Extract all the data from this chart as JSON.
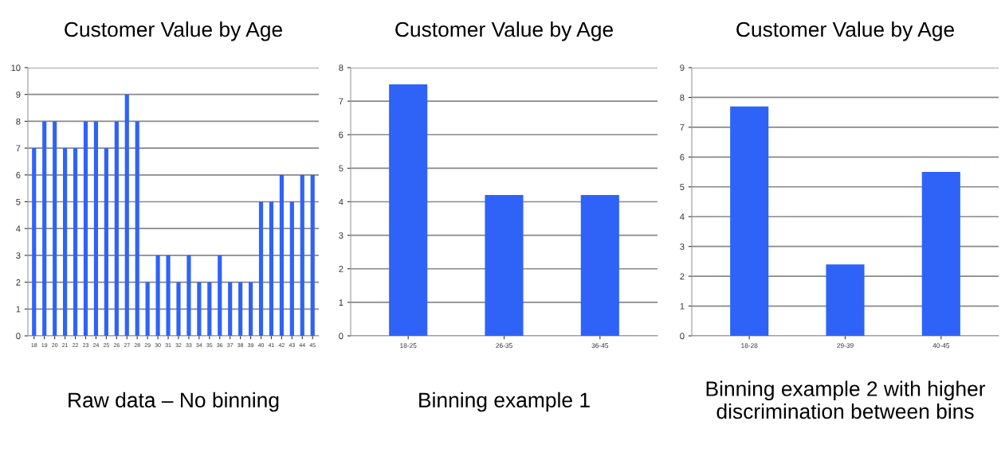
{
  "chart_data": [
    {
      "type": "bar",
      "title": "Customer Value by Age",
      "categories": [
        "18",
        "19",
        "20",
        "21",
        "22",
        "23",
        "24",
        "25",
        "26",
        "27",
        "28",
        "29",
        "30",
        "31",
        "32",
        "33",
        "34",
        "35",
        "36",
        "37",
        "38",
        "39",
        "40",
        "41",
        "42",
        "43",
        "44",
        "45"
      ],
      "values": [
        7,
        8,
        8,
        7,
        7,
        8,
        8,
        7,
        8,
        9,
        8,
        2,
        3,
        3,
        2,
        3,
        2,
        2,
        3,
        2,
        2,
        2,
        5,
        5,
        6,
        5,
        6,
        6
      ],
      "color": "#2f63f7",
      "ylim": [
        0,
        10
      ],
      "yticks": [
        0,
        1,
        2,
        3,
        4,
        5,
        6,
        7,
        8,
        9,
        10
      ],
      "grid": "y",
      "annotations": [
        "Raw data – No binning"
      ]
    },
    {
      "type": "bar",
      "title": "Customer Value by Age",
      "categories": [
        "18-25",
        "26-35",
        "36-45"
      ],
      "values": [
        7.5,
        4.2,
        4.2
      ],
      "color": "#2f63f7",
      "ylim": [
        0,
        8
      ],
      "yticks": [
        0,
        1,
        2,
        3,
        4,
        5,
        6,
        7,
        8
      ],
      "grid": "y",
      "annotations": [
        "Binning example 1"
      ]
    },
    {
      "type": "bar",
      "title": "Customer Value by Age",
      "categories": [
        "18-28",
        "29-39",
        "40-45"
      ],
      "values": [
        7.7,
        2.4,
        5.5
      ],
      "color": "#2f63f7",
      "ylim": [
        0,
        9
      ],
      "yticks": [
        0,
        1,
        2,
        3,
        4,
        5,
        6,
        7,
        8,
        9
      ],
      "grid": "y",
      "annotations": [
        "Binning example 2 with higher discrimination between bins"
      ]
    }
  ]
}
